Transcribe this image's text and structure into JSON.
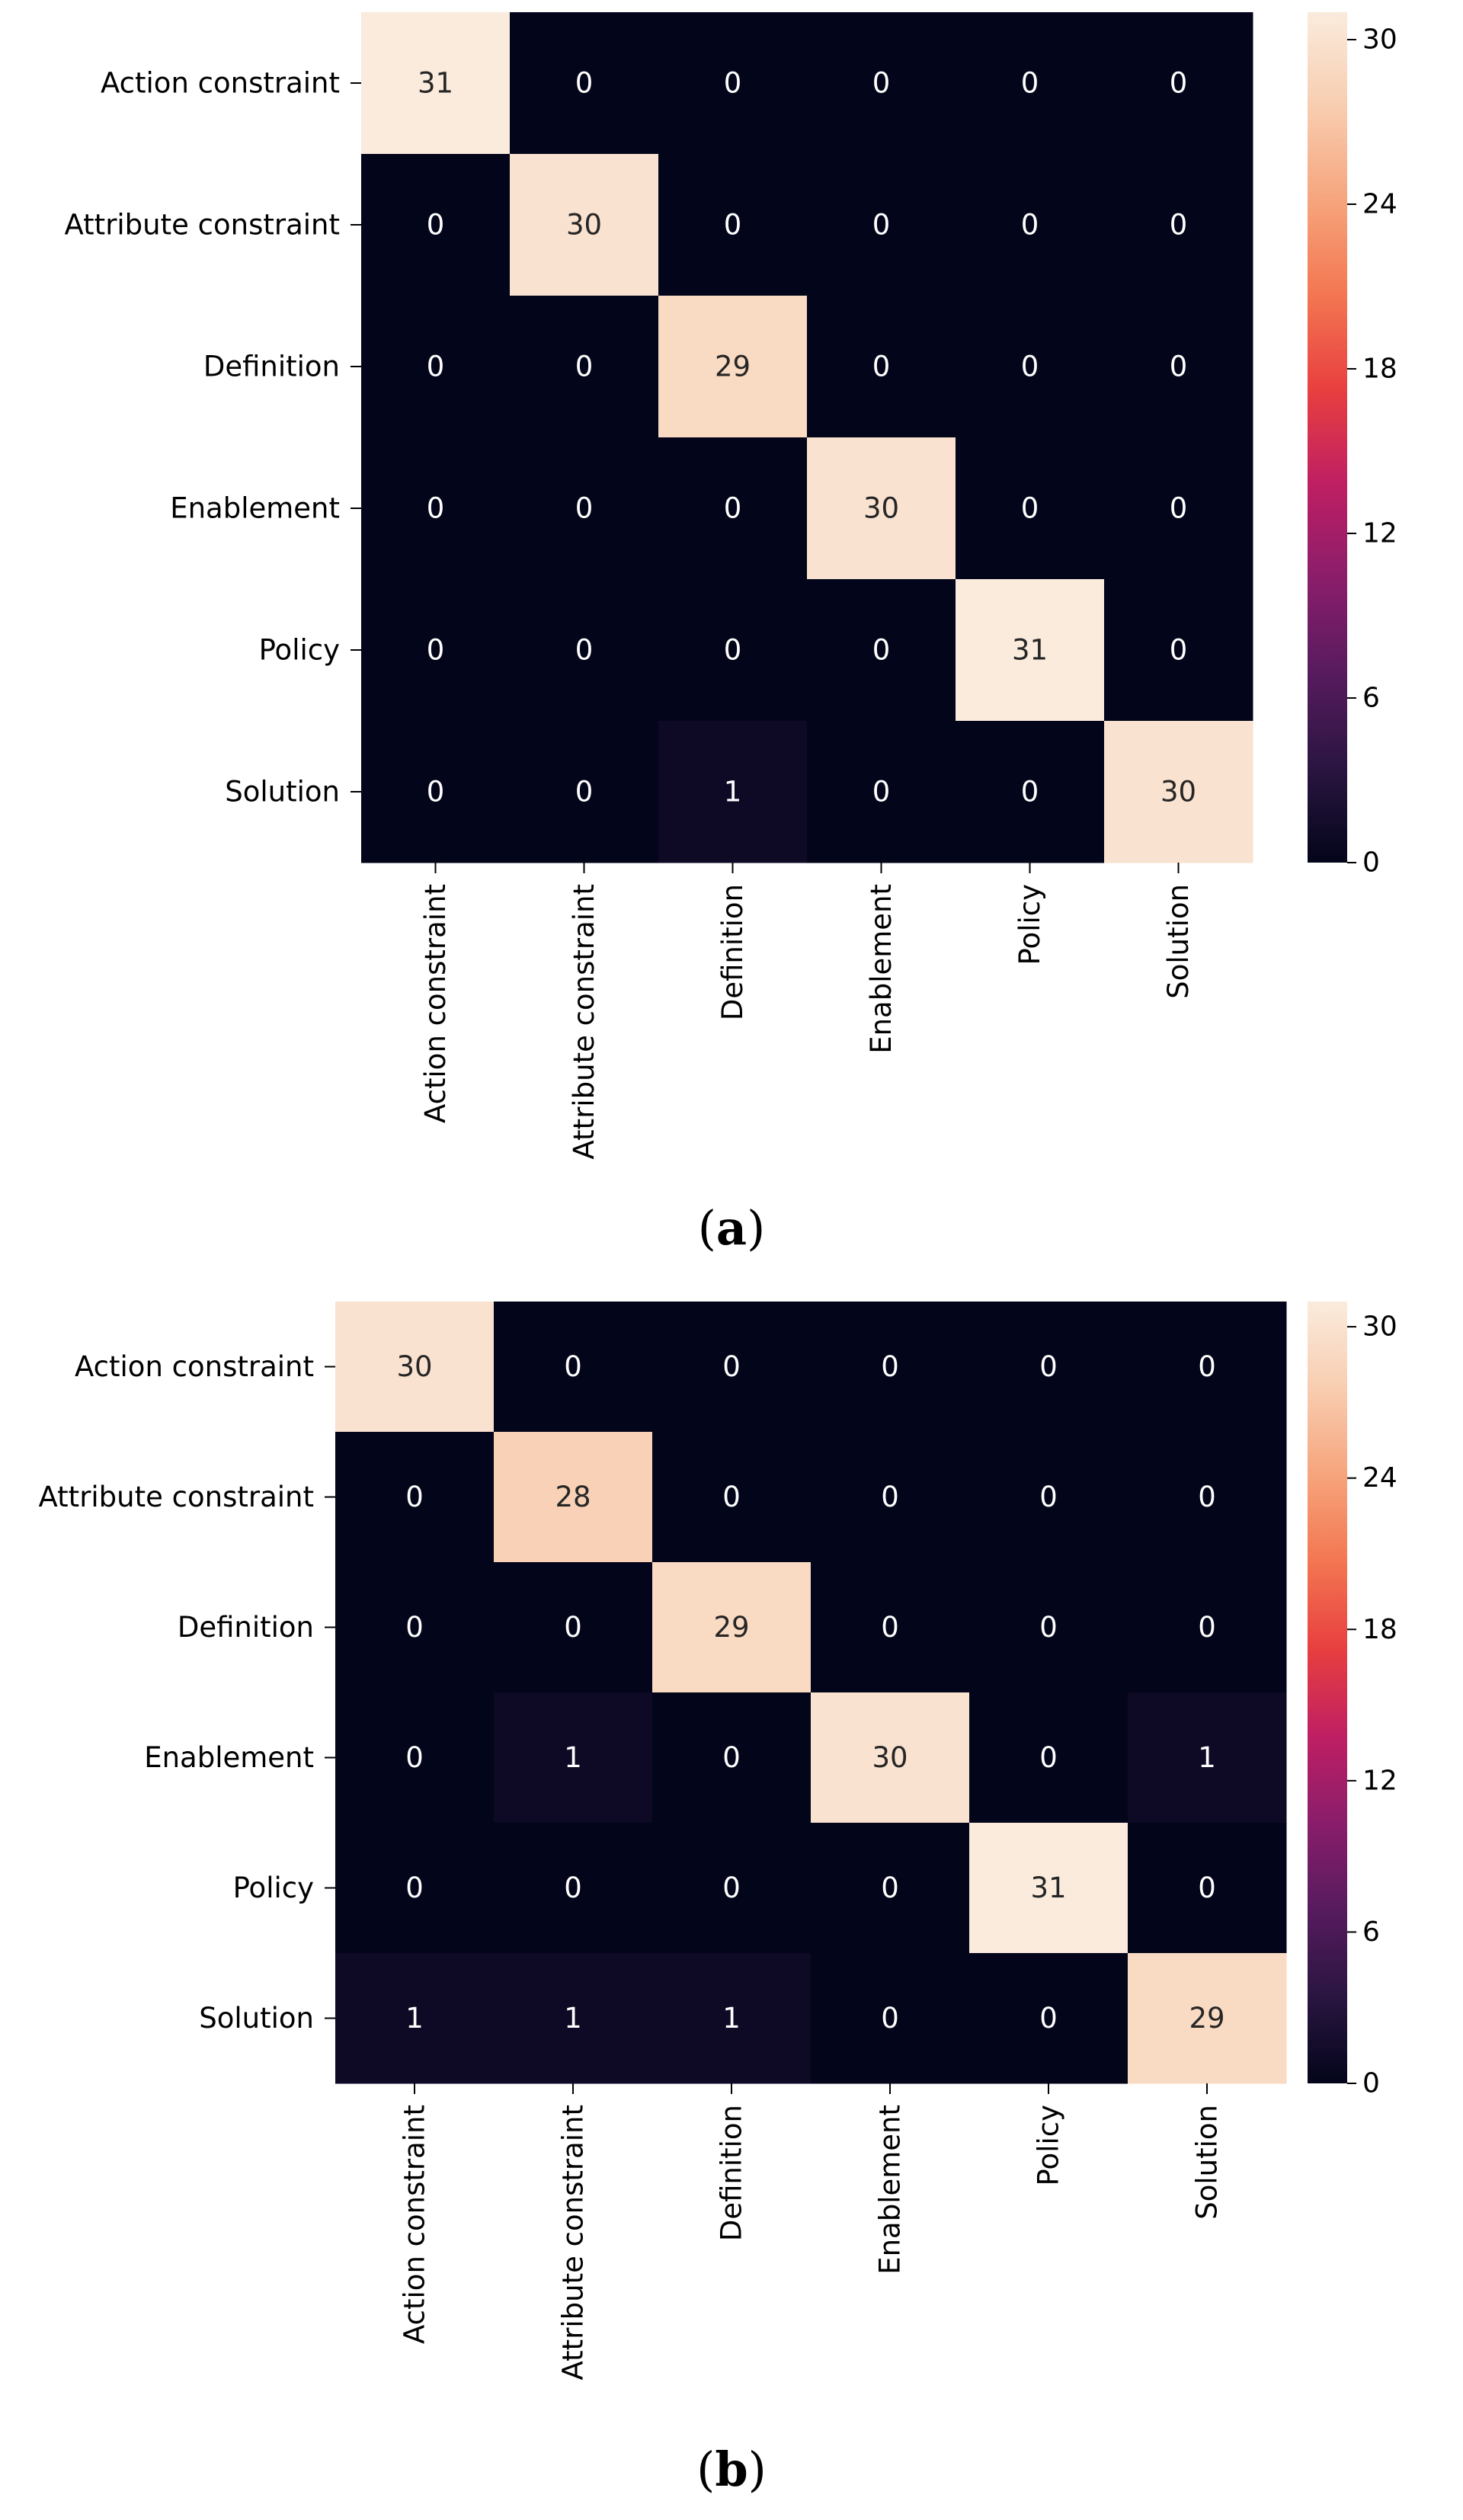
{
  "colors": {
    "background": "#ffffff",
    "axis": "#000000",
    "cell_text_dark": "#262626",
    "cell_text_light": "#ffffff",
    "colormap": [
      "#03051a",
      "#2a1541",
      "#571b5e",
      "#8a1d6b",
      "#bf1f63",
      "#e83f3f",
      "#f37651",
      "#f6a47c",
      "#f8cdb0",
      "#faebdd"
    ]
  },
  "chart_data": [
    {
      "type": "heatmap",
      "panel_label": "a",
      "row_labels": [
        "Action constraint",
        "Attribute constraint",
        "Definition",
        "Enablement",
        "Policy",
        "Solution"
      ],
      "col_labels": [
        "Action constraint",
        "Attribute constraint",
        "Definition",
        "Enablement",
        "Policy",
        "Solution"
      ],
      "values": [
        [
          31,
          0,
          0,
          0,
          0,
          0
        ],
        [
          0,
          30,
          0,
          0,
          0,
          0
        ],
        [
          0,
          0,
          29,
          0,
          0,
          0
        ],
        [
          0,
          0,
          0,
          30,
          0,
          0
        ],
        [
          0,
          0,
          0,
          0,
          31,
          0
        ],
        [
          0,
          0,
          1,
          0,
          0,
          30
        ]
      ],
      "colorbar": {
        "vmin": 0,
        "vmax": 31,
        "ticks": [
          0,
          6,
          12,
          18,
          24,
          30
        ]
      }
    },
    {
      "type": "heatmap",
      "panel_label": "b",
      "row_labels": [
        "Action constraint",
        "Attribute constraint",
        "Definition",
        "Enablement",
        "Policy",
        "Solution"
      ],
      "col_labels": [
        "Action constraint",
        "Attribute constraint",
        "Definition",
        "Enablement",
        "Policy",
        "Solution"
      ],
      "values": [
        [
          30,
          0,
          0,
          0,
          0,
          0
        ],
        [
          0,
          28,
          0,
          0,
          0,
          0
        ],
        [
          0,
          0,
          29,
          0,
          0,
          0
        ],
        [
          0,
          1,
          0,
          30,
          0,
          1
        ],
        [
          0,
          0,
          0,
          0,
          31,
          0
        ],
        [
          1,
          1,
          1,
          0,
          0,
          29
        ]
      ],
      "colorbar": {
        "vmin": 0,
        "vmax": 31,
        "ticks": [
          0,
          6,
          12,
          18,
          24,
          30
        ]
      }
    }
  ]
}
